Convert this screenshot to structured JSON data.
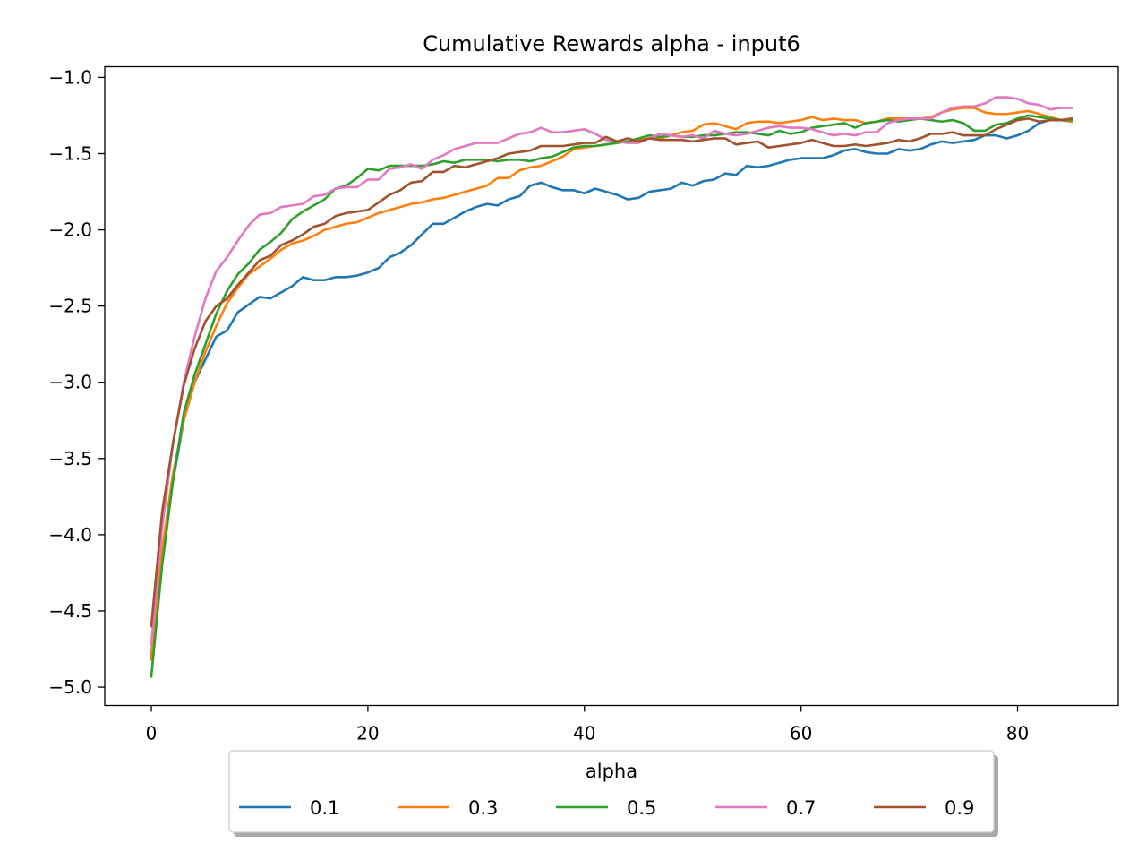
{
  "chart_data": {
    "type": "line",
    "title": "Cumulative Rewards alpha - input6",
    "xlabel": "",
    "ylabel": "",
    "xlim": [
      -4.3,
      89.3
    ],
    "ylim": [
      -5.12,
      -0.93
    ],
    "xticks": [
      0,
      20,
      40,
      60,
      80
    ],
    "yticks": [
      -5.0,
      -4.5,
      -4.0,
      -3.5,
      -3.0,
      -2.5,
      -2.0,
      -1.5,
      -1.0
    ],
    "xtick_labels": [
      "0",
      "20",
      "40",
      "60",
      "80"
    ],
    "ytick_labels": [
      "−5.0",
      "−4.5",
      "−4.0",
      "−3.5",
      "−3.0",
      "−2.5",
      "−2.0",
      "−1.5",
      "−1.0"
    ],
    "grid": false,
    "legend": {
      "title": "alpha",
      "placement": "below-center",
      "columns": 5
    },
    "x": {
      "start": 0,
      "end": 85,
      "step": 1
    },
    "series": [
      {
        "name": "0.1",
        "color": "#1f77b4",
        "values": [
          -4.8,
          -4.1,
          -3.65,
          -3.25,
          -3.0,
          -2.85,
          -2.7,
          -2.66,
          -2.54,
          -2.49,
          -2.44,
          -2.45,
          -2.41,
          -2.37,
          -2.31,
          -2.33,
          -2.33,
          -2.31,
          -2.31,
          -2.3,
          -2.28,
          -2.25,
          -2.18,
          -2.15,
          -2.1,
          -2.03,
          -1.96,
          -1.96,
          -1.92,
          -1.88,
          -1.85,
          -1.83,
          -1.84,
          -1.8,
          -1.78,
          -1.71,
          -1.69,
          -1.72,
          -1.74,
          -1.74,
          -1.76,
          -1.73,
          -1.75,
          -1.77,
          -1.8,
          -1.79,
          -1.75,
          -1.74,
          -1.73,
          -1.69,
          -1.71,
          -1.68,
          -1.67,
          -1.63,
          -1.64,
          -1.58,
          -1.59,
          -1.58,
          -1.56,
          -1.54,
          -1.53,
          -1.53,
          -1.53,
          -1.51,
          -1.48,
          -1.47,
          -1.49,
          -1.5,
          -1.5,
          -1.47,
          -1.48,
          -1.47,
          -1.44,
          -1.42,
          -1.43,
          -1.42,
          -1.41,
          -1.38,
          -1.38,
          -1.4,
          -1.38,
          -1.35,
          -1.3,
          -1.28,
          -1.28,
          -1.29
        ]
      },
      {
        "name": "0.3",
        "color": "#ff7f0e",
        "values": [
          -4.82,
          -4.1,
          -3.6,
          -3.25,
          -3.0,
          -2.8,
          -2.63,
          -2.48,
          -2.38,
          -2.29,
          -2.24,
          -2.19,
          -2.13,
          -2.09,
          -2.07,
          -2.04,
          -2.0,
          -1.98,
          -1.96,
          -1.95,
          -1.92,
          -1.89,
          -1.87,
          -1.85,
          -1.83,
          -1.82,
          -1.8,
          -1.79,
          -1.77,
          -1.75,
          -1.73,
          -1.71,
          -1.66,
          -1.66,
          -1.61,
          -1.59,
          -1.58,
          -1.55,
          -1.52,
          -1.47,
          -1.46,
          -1.45,
          -1.44,
          -1.43,
          -1.42,
          -1.41,
          -1.4,
          -1.4,
          -1.38,
          -1.36,
          -1.35,
          -1.31,
          -1.3,
          -1.32,
          -1.34,
          -1.3,
          -1.29,
          -1.29,
          -1.3,
          -1.29,
          -1.28,
          -1.26,
          -1.28,
          -1.27,
          -1.28,
          -1.28,
          -1.3,
          -1.29,
          -1.27,
          -1.27,
          -1.27,
          -1.27,
          -1.26,
          -1.23,
          -1.21,
          -1.2,
          -1.2,
          -1.23,
          -1.24,
          -1.24,
          -1.23,
          -1.22,
          -1.24,
          -1.26,
          -1.28,
          -1.29
        ]
      },
      {
        "name": "0.5",
        "color": "#2ca02c",
        "values": [
          -4.93,
          -4.2,
          -3.65,
          -3.2,
          -2.95,
          -2.75,
          -2.55,
          -2.4,
          -2.29,
          -2.22,
          -2.13,
          -2.08,
          -2.02,
          -1.93,
          -1.88,
          -1.84,
          -1.8,
          -1.73,
          -1.71,
          -1.66,
          -1.6,
          -1.61,
          -1.58,
          -1.58,
          -1.58,
          -1.58,
          -1.57,
          -1.55,
          -1.56,
          -1.54,
          -1.54,
          -1.54,
          -1.55,
          -1.54,
          -1.54,
          -1.55,
          -1.53,
          -1.52,
          -1.49,
          -1.46,
          -1.45,
          -1.45,
          -1.44,
          -1.43,
          -1.42,
          -1.4,
          -1.38,
          -1.39,
          -1.38,
          -1.39,
          -1.39,
          -1.38,
          -1.38,
          -1.37,
          -1.36,
          -1.36,
          -1.37,
          -1.38,
          -1.35,
          -1.37,
          -1.36,
          -1.33,
          -1.32,
          -1.31,
          -1.3,
          -1.33,
          -1.3,
          -1.29,
          -1.28,
          -1.29,
          -1.28,
          -1.27,
          -1.28,
          -1.29,
          -1.28,
          -1.3,
          -1.35,
          -1.35,
          -1.31,
          -1.3,
          -1.27,
          -1.25,
          -1.26,
          -1.27,
          -1.28,
          -1.28
        ]
      },
      {
        "name": "0.7",
        "color": "#e377c2",
        "values": [
          -4.72,
          -3.95,
          -3.4,
          -3.0,
          -2.7,
          -2.45,
          -2.27,
          -2.18,
          -2.07,
          -1.97,
          -1.9,
          -1.89,
          -1.85,
          -1.84,
          -1.83,
          -1.78,
          -1.77,
          -1.73,
          -1.72,
          -1.72,
          -1.67,
          -1.67,
          -1.6,
          -1.59,
          -1.57,
          -1.6,
          -1.54,
          -1.51,
          -1.47,
          -1.45,
          -1.43,
          -1.43,
          -1.43,
          -1.4,
          -1.37,
          -1.36,
          -1.33,
          -1.36,
          -1.36,
          -1.35,
          -1.34,
          -1.37,
          -1.41,
          -1.42,
          -1.43,
          -1.43,
          -1.4,
          -1.37,
          -1.38,
          -1.39,
          -1.38,
          -1.4,
          -1.35,
          -1.37,
          -1.38,
          -1.37,
          -1.35,
          -1.33,
          -1.32,
          -1.33,
          -1.33,
          -1.34,
          -1.36,
          -1.38,
          -1.37,
          -1.38,
          -1.36,
          -1.36,
          -1.3,
          -1.28,
          -1.27,
          -1.27,
          -1.27,
          -1.23,
          -1.2,
          -1.19,
          -1.19,
          -1.17,
          -1.13,
          -1.13,
          -1.14,
          -1.17,
          -1.18,
          -1.21,
          -1.2,
          -1.2
        ]
      },
      {
        "name": "0.9",
        "color": "#a0522d",
        "values": [
          -4.6,
          -3.85,
          -3.4,
          -3.02,
          -2.78,
          -2.6,
          -2.5,
          -2.45,
          -2.36,
          -2.28,
          -2.2,
          -2.17,
          -2.1,
          -2.07,
          -2.03,
          -1.98,
          -1.96,
          -1.91,
          -1.89,
          -1.88,
          -1.87,
          -1.82,
          -1.77,
          -1.74,
          -1.69,
          -1.68,
          -1.62,
          -1.62,
          -1.58,
          -1.59,
          -1.57,
          -1.55,
          -1.53,
          -1.5,
          -1.49,
          -1.48,
          -1.45,
          -1.45,
          -1.45,
          -1.44,
          -1.43,
          -1.43,
          -1.39,
          -1.42,
          -1.4,
          -1.42,
          -1.4,
          -1.41,
          -1.41,
          -1.41,
          -1.42,
          -1.41,
          -1.4,
          -1.4,
          -1.44,
          -1.43,
          -1.42,
          -1.46,
          -1.45,
          -1.44,
          -1.43,
          -1.41,
          -1.43,
          -1.45,
          -1.45,
          -1.44,
          -1.45,
          -1.44,
          -1.43,
          -1.41,
          -1.42,
          -1.4,
          -1.37,
          -1.37,
          -1.36,
          -1.38,
          -1.38,
          -1.38,
          -1.34,
          -1.31,
          -1.28,
          -1.27,
          -1.29,
          -1.28,
          -1.28,
          -1.27
        ]
      }
    ]
  }
}
